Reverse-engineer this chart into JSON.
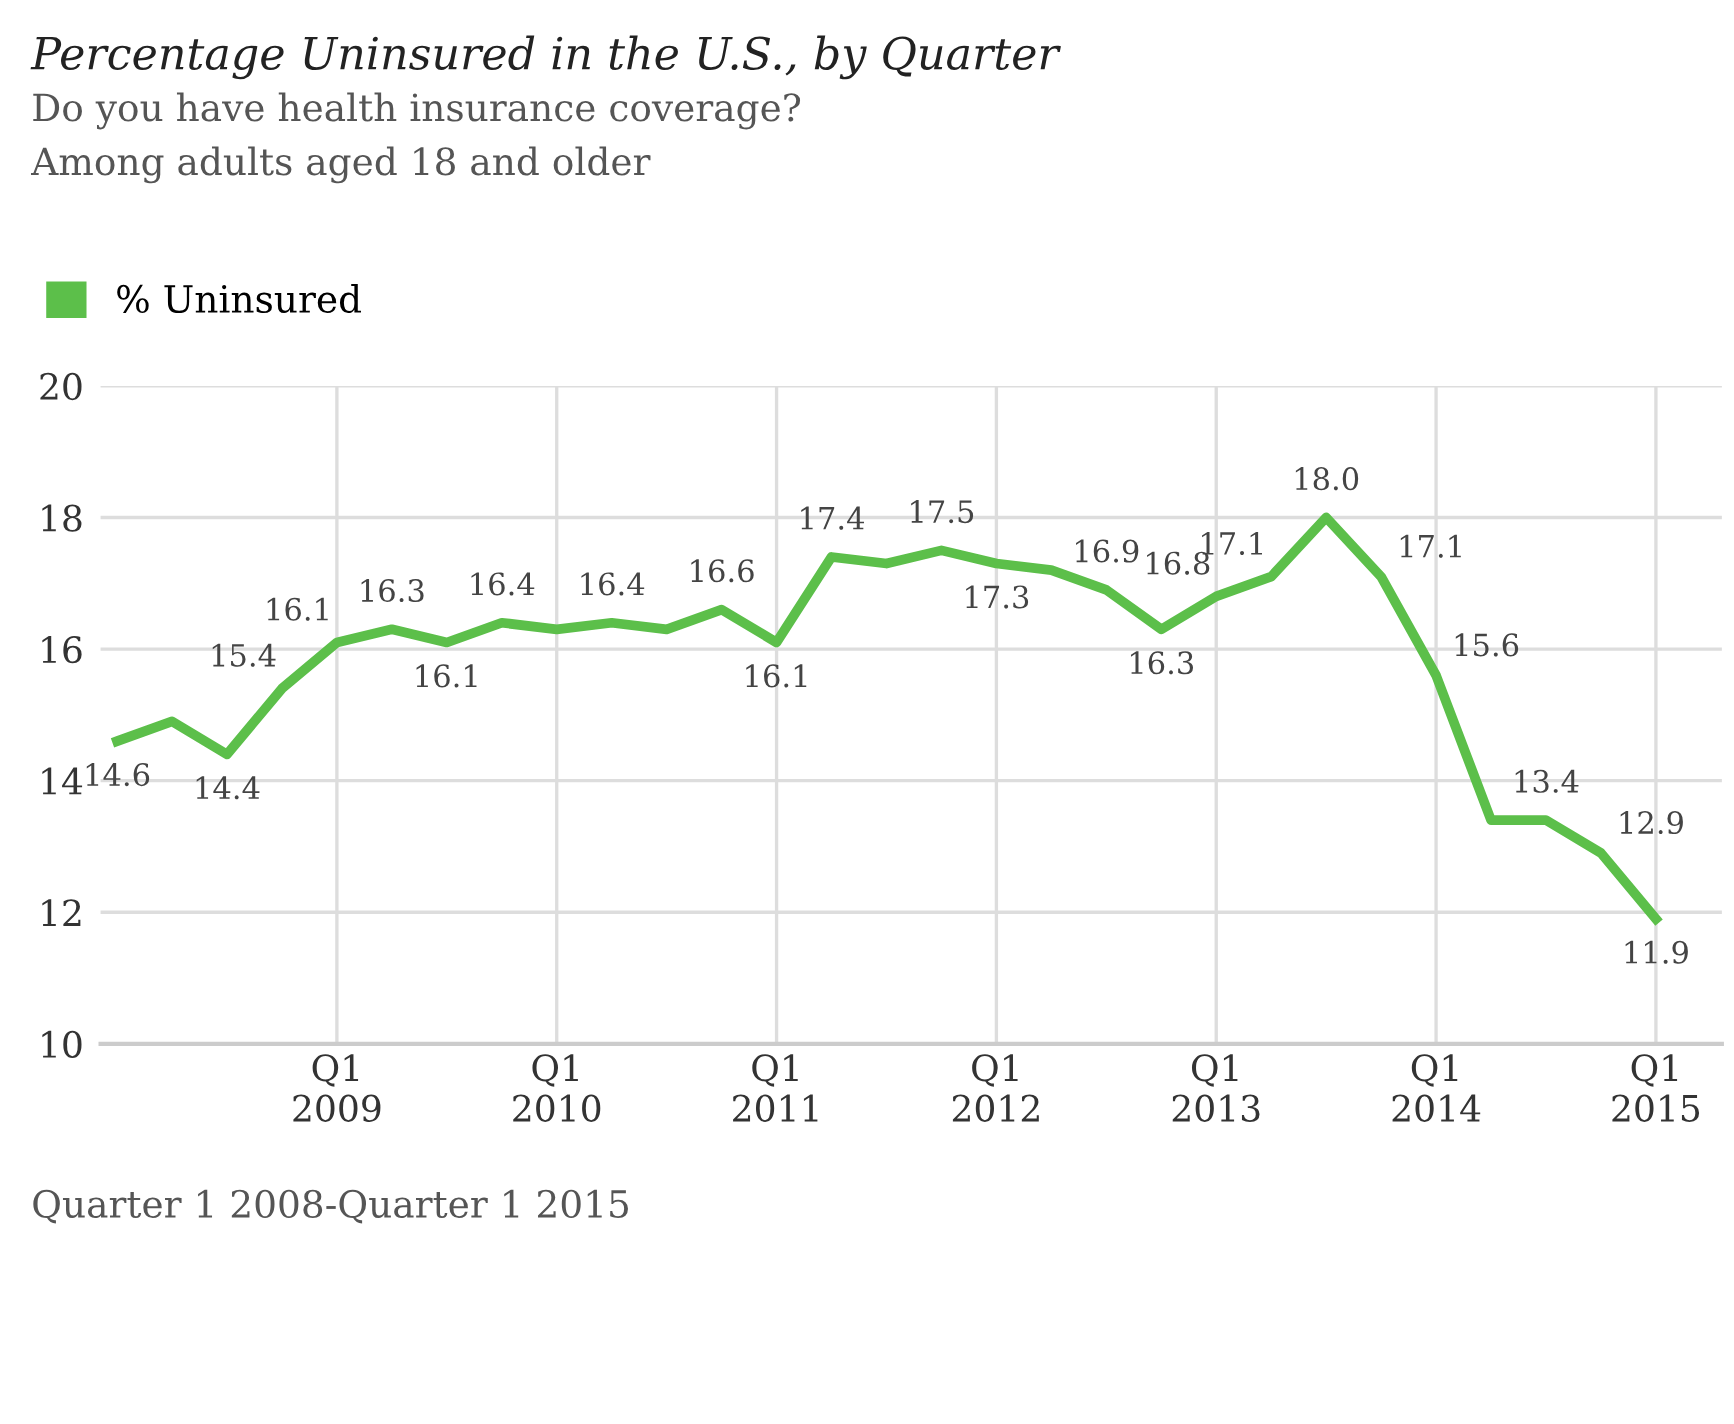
{
  "chart_data": {
    "type": "line",
    "title": "Percentage Uninsured in the U.S., by Quarter",
    "subtitle": "Do you have health insurance coverage?\nAmong adults aged 18 and older",
    "categories": [
      null,
      null,
      null,
      null,
      "Q1\n2009",
      null,
      null,
      null,
      "Q1\n2010",
      null,
      null,
      null,
      "Q1\n2011",
      null,
      null,
      null,
      "Q1\n2012",
      null,
      null,
      null,
      "Q1\n2013",
      null,
      null,
      null,
      "Q1\n2014",
      null,
      null,
      null,
      "Q1\n2015"
    ],
    "series": [
      {
        "name": "% Uninsured",
        "color": "#5cbf4a",
        "values": [
          14.6,
          14.9,
          14.4,
          15.4,
          16.1,
          16.3,
          16.1,
          16.4,
          16.3,
          16.4,
          16.3,
          16.6,
          16.1,
          17.4,
          17.3,
          17.5,
          17.3,
          17.2,
          16.9,
          16.3,
          16.8,
          17.1,
          18.0,
          17.1,
          15.6,
          13.4,
          13.4,
          12.9,
          11.9
        ],
        "value_labels": [
          "14.6",
          null,
          "14.4",
          "15.4",
          "16.1",
          "16.3",
          "16.1",
          "16.4",
          null,
          "16.4",
          null,
          "16.6",
          "16.1",
          "17.4",
          null,
          "17.5",
          "17.3",
          null,
          "16.9",
          "16.3",
          "16.8",
          "17.1",
          "18.0",
          "17.1",
          "15.6",
          null,
          "13.4",
          "12.9",
          "11.9"
        ]
      }
    ],
    "ylim": [
      10,
      20
    ],
    "yticks": [
      10,
      12,
      14,
      16,
      18,
      20
    ],
    "grid": true,
    "legend": "top left",
    "marker": "none",
    "line_style": "solid",
    "annotations": [
      "Quarter 1 2008-Quarter 1 2015"
    ]
  }
}
